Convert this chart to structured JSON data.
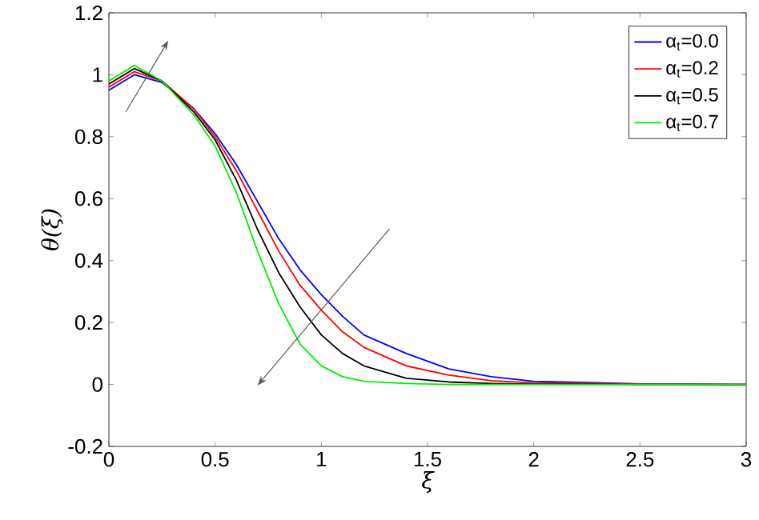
{
  "chart_data": {
    "type": "line",
    "xlabel": "ξ",
    "ylabel": "*θ*(*ξ*)",
    "x": [
      0,
      0.12,
      0.25,
      0.4,
      0.5,
      0.6,
      0.7,
      0.8,
      0.9,
      1.0,
      1.1,
      1.2,
      1.4,
      1.6,
      1.8,
      2.0,
      2.5,
      3.0
    ],
    "series": [
      {
        "name": "α$_{t}$=0.0",
        "color": "#0000ff",
        "values": [
          0.95,
          1.0,
          0.975,
          0.89,
          0.81,
          0.71,
          0.59,
          0.47,
          0.37,
          0.29,
          0.22,
          0.16,
          0.1,
          0.05,
          0.025,
          0.01,
          0.002,
          0
        ]
      },
      {
        "name": "α$_{t}$=0.2",
        "color": "#ff0000",
        "values": [
          0.96,
          1.01,
          0.98,
          0.89,
          0.8,
          0.69,
          0.56,
          0.43,
          0.32,
          0.24,
          0.17,
          0.12,
          0.06,
          0.03,
          0.012,
          0.005,
          0.001,
          0
        ]
      },
      {
        "name": "α$_{t}$=0.5",
        "color": "#000000",
        "values": [
          0.97,
          1.02,
          0.98,
          0.88,
          0.79,
          0.66,
          0.5,
          0.36,
          0.25,
          0.16,
          0.1,
          0.06,
          0.02,
          0.008,
          0.003,
          0.001,
          0,
          0
        ]
      },
      {
        "name": "α$_{t}$=0.7",
        "color": "#00ee00",
        "values": [
          0.98,
          1.03,
          0.98,
          0.87,
          0.77,
          0.62,
          0.43,
          0.26,
          0.13,
          0.06,
          0.025,
          0.01,
          0.003,
          0,
          0,
          0,
          0,
          0
        ]
      }
    ],
    "xlim": [
      0,
      3
    ],
    "ylim": [
      -0.2,
      1.2
    ],
    "xticks": [
      0,
      0.5,
      1,
      1.5,
      2,
      2.5,
      3
    ],
    "yticks": [
      -0.2,
      0,
      0.2,
      0.4,
      0.6,
      0.8,
      1,
      1.2
    ],
    "legend": "top right",
    "grid": false,
    "marker": "none",
    "line_style": "solid"
  }
}
